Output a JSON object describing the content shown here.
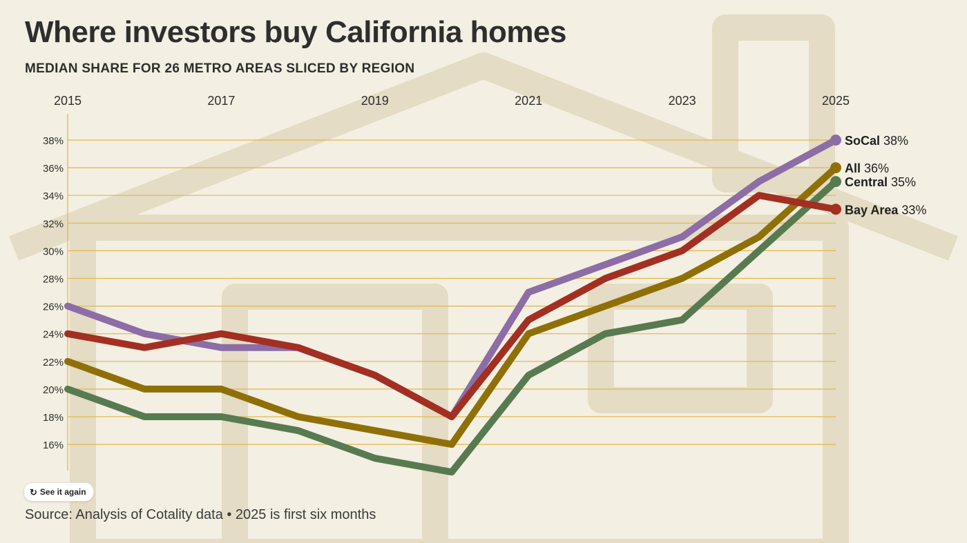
{
  "header": {
    "title": "Where investors buy California homes",
    "subtitle": "MEDIAN SHARE FOR 26 METRO AREAS SLICED BY REGION"
  },
  "controls": {
    "replay_label": "See it again",
    "replay_icon": "replay-icon"
  },
  "footer": {
    "source": "Source: Analysis of Cotality data • 2025 is first six months"
  },
  "colors": {
    "background": "#f3efe2",
    "gridline": "#e2b64a",
    "axis_text": "#2e2e2e"
  },
  "chart_data": {
    "type": "line",
    "title": "Where investors buy California homes",
    "subtitle": "MEDIAN SHARE FOR 26 METRO AREAS SLICED BY REGION",
    "x": [
      2015,
      2016,
      2017,
      2018,
      2019,
      2020,
      2021,
      2022,
      2023,
      2024,
      2025
    ],
    "x_tick_labels": [
      "2015",
      "2017",
      "2019",
      "2021",
      "2023",
      "2025"
    ],
    "xlim": [
      2015,
      2025
    ],
    "x_axis_position": "top",
    "y_tick_labels": [
      "16%",
      "18%",
      "20%",
      "22%",
      "24%",
      "26%",
      "28%",
      "30%",
      "32%",
      "34%",
      "36%",
      "38%"
    ],
    "ylim": [
      14,
      39
    ],
    "y_unit": "%",
    "grid": true,
    "legend": "direct end labels on right",
    "series": [
      {
        "name": "SoCal",
        "end_label": "38%",
        "color": "#8c6da6",
        "values": [
          26,
          24,
          23,
          23,
          21,
          18,
          27,
          29,
          31,
          35,
          38
        ]
      },
      {
        "name": "All",
        "end_label": "36%",
        "color": "#8f7008",
        "values": [
          22,
          20,
          20,
          18,
          17,
          16,
          24,
          26,
          28,
          31,
          36
        ]
      },
      {
        "name": "Central",
        "end_label": "35%",
        "color": "#587a50",
        "values": [
          20,
          18,
          18,
          17,
          15,
          14,
          21,
          24,
          25,
          30,
          35
        ]
      },
      {
        "name": "Bay Area",
        "end_label": "33%",
        "color": "#a22f22",
        "values": [
          24,
          23,
          24,
          23,
          21,
          18,
          25,
          28,
          30,
          34,
          33
        ]
      }
    ]
  }
}
